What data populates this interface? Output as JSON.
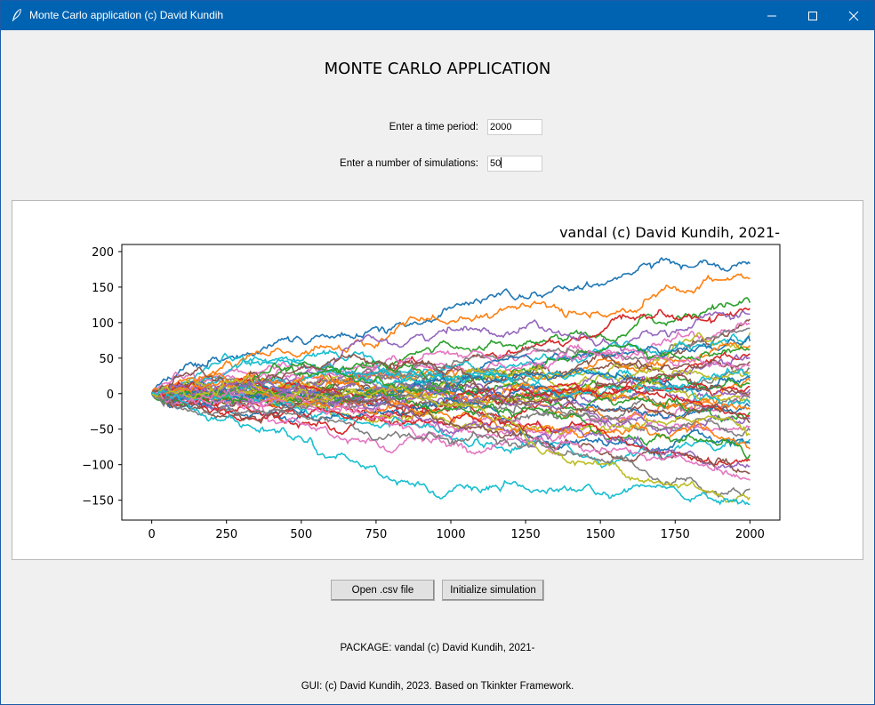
{
  "window": {
    "title": "Monte Carlo application (c) David Kundih",
    "titlebar_color": "#0063b1"
  },
  "heading": "MONTE CARLO APPLICATION",
  "form": {
    "time_period_label": "Enter a time period:",
    "time_period_value": "2000",
    "simulations_label": "Enter a number of simulations:",
    "simulations_value": "50"
  },
  "chart_data": {
    "type": "line",
    "title": "vandal (c) David Kundih, 2021-",
    "xlabel": "",
    "ylabel": "",
    "xlim": [
      -100,
      2100
    ],
    "ylim": [
      -178,
      210
    ],
    "x_ticks": [
      0,
      250,
      500,
      750,
      1000,
      1250,
      1500,
      1750,
      2000
    ],
    "y_ticks": [
      -150,
      -100,
      -50,
      0,
      50,
      100,
      150,
      200
    ],
    "n_series": 50,
    "n_steps": 2000,
    "start_value": 0,
    "series_end_values": [
      183,
      162,
      128,
      120,
      112,
      105,
      98,
      92,
      86,
      80,
      74,
      68,
      62,
      56,
      50,
      45,
      40,
      35,
      30,
      26,
      22,
      18,
      14,
      10,
      6,
      2,
      -2,
      -6,
      -10,
      -14,
      -18,
      -22,
      -26,
      -31,
      -36,
      -41,
      -46,
      -52,
      -58,
      -64,
      -70,
      -78,
      -86,
      -94,
      -102,
      -112,
      -122,
      -134,
      -146,
      -156
    ],
    "colors": [
      "#1f77b4",
      "#ff7f0e",
      "#2ca02c",
      "#d62728",
      "#9467bd",
      "#8c564b",
      "#e377c2",
      "#7f7f7f",
      "#bcbd22",
      "#17becf"
    ],
    "grid": false,
    "legend": "none"
  },
  "buttons": {
    "open_csv": "Open .csv file",
    "initialize": "Initialize simulation"
  },
  "footer": {
    "package": "PACKAGE: vandal (c) David Kundih, 2021-",
    "gui": "GUI: (c) David Kundih, 2023. Based on Tkinkter Framework."
  }
}
